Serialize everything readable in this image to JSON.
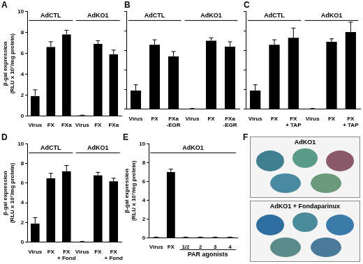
{
  "chart_data": [
    {
      "type": "bar",
      "title": "A",
      "y_label": [
        "β-gal expression",
        "(RLU x 10⁷/mg protein)"
      ],
      "groups": [
        "AdCTL",
        "AdKO1"
      ],
      "categories": [
        "Virus",
        "FX",
        "FXa",
        "Virus",
        "FX",
        "FXa"
      ],
      "values": [
        1.9,
        6.6,
        7.8,
        0.05,
        6.9,
        5.9
      ],
      "errors": [
        0.6,
        0.5,
        0.4,
        0.03,
        0.3,
        0.4
      ],
      "color": "#000000",
      "ylim": [
        0,
        10
      ],
      "yticks": [
        0,
        2,
        4,
        6,
        8,
        10
      ],
      "grid": false
    },
    {
      "type": "bar",
      "title": "B",
      "groups": [
        "AdCTL",
        "AdKO1"
      ],
      "categories": [
        "Virus",
        "FX",
        [
          "FXa",
          "-EGR"
        ],
        "Virus",
        "FX",
        [
          "FXa",
          "-EGR"
        ]
      ],
      "values": [
        1.9,
        6.6,
        5.4,
        0.05,
        7.0,
        6.4
      ],
      "errors": [
        0.6,
        0.5,
        0.5,
        0.03,
        0.3,
        0.5
      ],
      "color": "#000000",
      "ylim": [
        0,
        10
      ],
      "yticks": [
        0,
        2,
        4,
        6,
        8,
        10
      ],
      "grid": false,
      "tick_labels": "x"
    },
    {
      "type": "bar",
      "title": "C",
      "groups": [
        "AdCTL",
        "AdKO1"
      ],
      "categories": [
        "Virus",
        "FX",
        [
          "FX",
          "+ TAP"
        ],
        "Virus",
        "FX",
        [
          "FX",
          "+ TAP"
        ]
      ],
      "values": [
        1.9,
        6.6,
        7.3,
        0.05,
        6.9,
        7.9
      ],
      "errors": [
        0.6,
        0.5,
        1.0,
        0.03,
        0.3,
        1.0
      ],
      "color": "#000000",
      "ylim": [
        0,
        10
      ],
      "yticks": [
        0,
        2,
        4,
        6,
        8,
        10
      ],
      "grid": false,
      "tick_labels": "x"
    },
    {
      "type": "bar",
      "title": "D",
      "y_label": [
        "β-gal expression",
        "(RLU x 10⁷/mg protein)"
      ],
      "groups": [
        "AdCTL",
        "AdKO1"
      ],
      "categories": [
        "Virus",
        "FX",
        [
          "FX",
          "+ Fond"
        ],
        "Virus",
        "FX",
        [
          "FX",
          "+ Fond"
        ]
      ],
      "values": [
        1.9,
        6.5,
        7.2,
        0.05,
        6.8,
        6.2
      ],
      "errors": [
        0.6,
        0.5,
        0.6,
        0.03,
        0.3,
        0.3
      ],
      "color": "#000000",
      "ylim": [
        0,
        10
      ],
      "yticks": [
        0,
        2,
        4,
        6,
        8,
        10
      ],
      "grid": false
    },
    {
      "type": "bar",
      "title": "E",
      "y_label": [
        "β-gal expression",
        "(RLU x 10⁷/mg protein)"
      ],
      "groups": [
        "AdKO1"
      ],
      "categories": [
        "Virus",
        "FX",
        "1/2",
        "2",
        "3",
        "4"
      ],
      "subgroups": [
        {
          "name": "PAR agonists",
          "categories": [
            "1/2",
            "2",
            "3",
            "4"
          ]
        }
      ],
      "values": [
        0.05,
        7.0,
        0.05,
        0.05,
        0.05,
        0.05
      ],
      "errors": [
        0.03,
        0.3,
        0.03,
        0.03,
        0.03,
        0.03
      ],
      "color": "#000000",
      "ylim": [
        0,
        10
      ],
      "yticks": [
        0,
        2,
        4,
        6,
        8,
        10
      ],
      "grid": false
    }
  ],
  "images": {
    "title": "F",
    "panels": [
      "AdKO1",
      "AdKO1 + Fondaparinux"
    ]
  }
}
